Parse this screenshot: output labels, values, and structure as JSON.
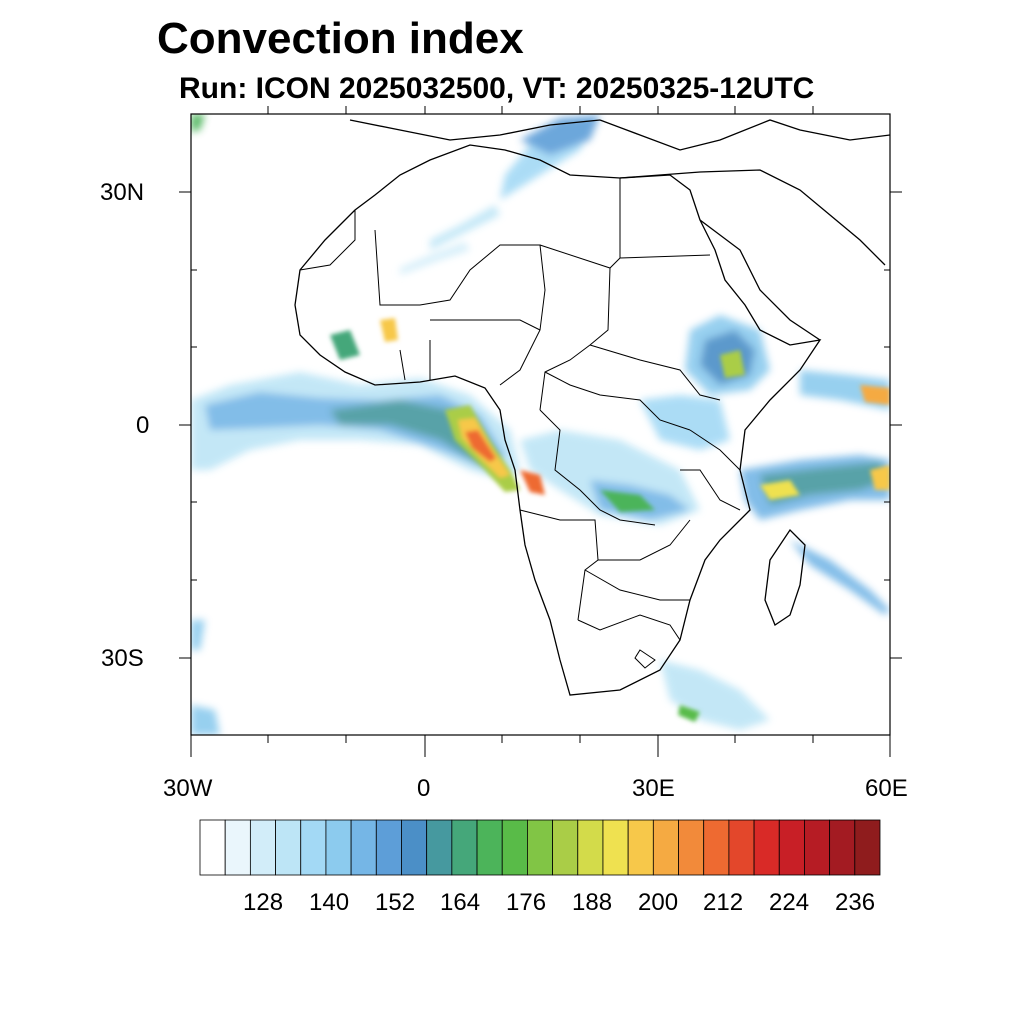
{
  "title": "Convection index",
  "subtitle": "Run: ICON 2025032500,  VT: 20250325-12UTC",
  "map": {
    "lon_range": [
      -30,
      60
    ],
    "lat_range": [
      -40,
      40
    ],
    "lat_labels": [
      "30N",
      "0",
      "30S"
    ],
    "lon_labels": [
      "30W",
      "0",
      "30E",
      "60E"
    ]
  },
  "colorbar": {
    "labels": [
      "128",
      "140",
      "152",
      "164",
      "176",
      "188",
      "200",
      "212",
      "224",
      "236"
    ],
    "colors": [
      "#ffffff",
      "#eaf6fc",
      "#d2edf9",
      "#bde5f6",
      "#a3d9f5",
      "#8ccbee",
      "#75b6e6",
      "#5d9ed8",
      "#4b8fc7",
      "#46999f",
      "#45a77a",
      "#4cb45a",
      "#59bb48",
      "#81c545",
      "#aacd47",
      "#d3db4a",
      "#efe150",
      "#f7c84a",
      "#f5aa42",
      "#f28a3a",
      "#ee6a31",
      "#e3472b",
      "#d92a27",
      "#c81f26",
      "#b61c24",
      "#a31b22",
      "#8f1c1d"
    ]
  }
}
